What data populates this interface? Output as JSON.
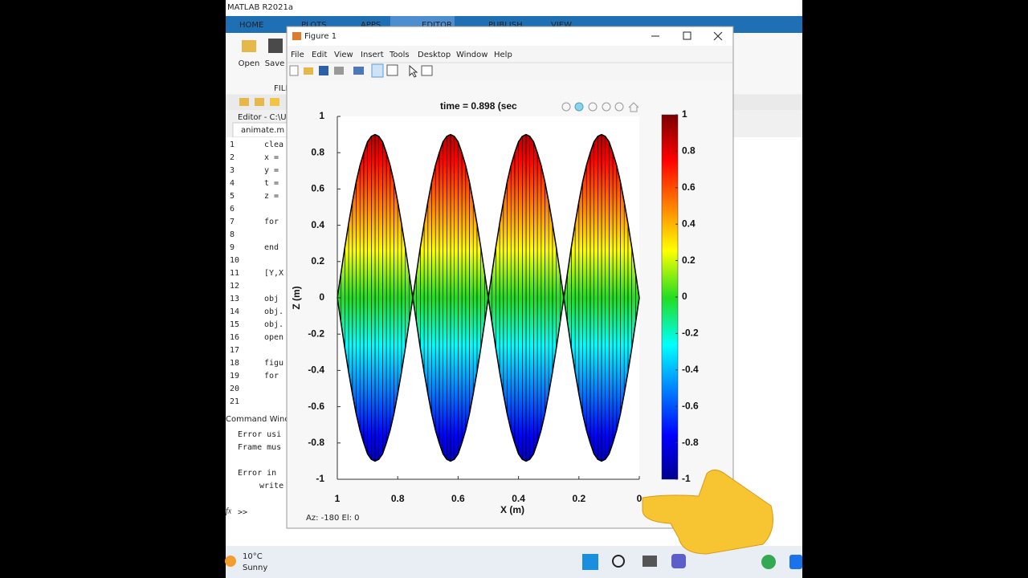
{
  "app_title": "MATLAB R2021a",
  "ribbon_tabs": [
    "HOME",
    "PLOTS",
    "APPS",
    "EDITOR",
    "PUBLISH",
    "VIEW"
  ],
  "toolbar": {
    "open": "Open",
    "save": "Save",
    "section": "FILE"
  },
  "editor": {
    "title": "Editor - C:\\Use",
    "tab": "animate.m",
    "lines": [
      {
        "line": "1",
        "text": "clea"
      },
      {
        "line": "2",
        "text": "x ="
      },
      {
        "line": "3",
        "text": "y ="
      },
      {
        "line": "4",
        "text": "t ="
      },
      {
        "line": "5",
        "text": "z ="
      },
      {
        "line": "6"
      },
      {
        "line": "7",
        "text": "for"
      },
      {
        "line": "8"
      },
      {
        "line": "9",
        "text": "end"
      },
      {
        "line": "10"
      },
      {
        "line": "11",
        "text": "[Y,X"
      },
      {
        "line": "12"
      },
      {
        "line": "13",
        "text": "obj"
      },
      {
        "line": "14",
        "text": "obj."
      },
      {
        "line": "15",
        "text": "obj."
      },
      {
        "line": "16",
        "text": "open"
      },
      {
        "line": "17"
      },
      {
        "line": "18",
        "text": "figu"
      },
      {
        "line": "19",
        "text": "for"
      },
      {
        "line": "20"
      },
      {
        "line": "21"
      }
    ]
  },
  "command_window": {
    "title": "Command Windo",
    "lines": [
      "Error usi",
      "Frame mus",
      "Error in",
      "write"
    ],
    "prompt_icon": "fx",
    "prompt": ">>"
  },
  "figure": {
    "title": "Figure 1",
    "menus": [
      "File",
      "Edit",
      "View",
      "Insert",
      "Tools",
      "Desktop",
      "Window",
      "Help"
    ],
    "view_status": "Az: -180 El:   0"
  },
  "chart_data": {
    "type": "surface",
    "title": "time = 0.898 (sec",
    "x_label": "X (m)",
    "y_label": "Z (m)",
    "xlim": [
      0,
      1
    ],
    "x_reverse": true,
    "xticks": [
      0,
      0.2,
      0.4,
      0.6,
      0.8,
      1
    ],
    "ylim": [
      -1,
      1
    ],
    "yticks": [
      -1,
      -0.8,
      -0.6,
      -0.4,
      -0.2,
      0,
      0.2,
      0.4,
      0.6,
      0.8,
      1
    ],
    "colormap": "jet",
    "edge_color": "#000000",
    "x": [
      0,
      0.0125,
      0.025,
      0.0375,
      0.05,
      0.0625,
      0.075,
      0.0875,
      0.1,
      0.1125,
      0.125,
      0.1375,
      0.15,
      0.1625,
      0.175,
      0.1875,
      0.2,
      0.2125,
      0.225,
      0.2375,
      0.25,
      0.2625,
      0.275,
      0.2875,
      0.3,
      0.3125,
      0.325,
      0.3375,
      0.35,
      0.3625,
      0.375,
      0.3875,
      0.4,
      0.4125,
      0.425,
      0.4375,
      0.45,
      0.4625,
      0.475,
      0.4875,
      0.5,
      0.5125,
      0.525,
      0.5375,
      0.55,
      0.5625,
      0.575,
      0.5875,
      0.6,
      0.6125,
      0.625,
      0.6375,
      0.65,
      0.6625,
      0.675,
      0.6875,
      0.7,
      0.7125,
      0.725,
      0.7375,
      0.75,
      0.7625,
      0.775,
      0.7875,
      0.8,
      0.8125,
      0.825,
      0.8375,
      0.85,
      0.8625,
      0.875,
      0.8875,
      0.9,
      0.9125,
      0.925,
      0.9375,
      0.95,
      0.9625,
      0.975,
      0.9875,
      1
    ],
    "z_upper": [
      0,
      0.14,
      0.28,
      0.41,
      0.53,
      0.64,
      0.73,
      0.8,
      0.86,
      0.89,
      0.9,
      0.89,
      0.86,
      0.8,
      0.73,
      0.64,
      0.53,
      0.41,
      0.28,
      0.14,
      0,
      0.14,
      0.28,
      0.41,
      0.53,
      0.64,
      0.73,
      0.8,
      0.86,
      0.89,
      0.9,
      0.89,
      0.86,
      0.8,
      0.73,
      0.64,
      0.53,
      0.41,
      0.28,
      0.14,
      0,
      0.14,
      0.28,
      0.41,
      0.53,
      0.64,
      0.73,
      0.8,
      0.86,
      0.89,
      0.9,
      0.89,
      0.86,
      0.8,
      0.73,
      0.64,
      0.53,
      0.41,
      0.28,
      0.14,
      0,
      0.14,
      0.28,
      0.41,
      0.53,
      0.64,
      0.73,
      0.8,
      0.86,
      0.89,
      0.9,
      0.89,
      0.86,
      0.8,
      0.73,
      0.64,
      0.53,
      0.41,
      0.28,
      0.14,
      0
    ],
    "z_lower": [
      0,
      -0.14,
      -0.28,
      -0.41,
      -0.53,
      -0.64,
      -0.73,
      -0.8,
      -0.86,
      -0.89,
      -0.9,
      -0.89,
      -0.86,
      -0.8,
      -0.73,
      -0.64,
      -0.53,
      -0.41,
      -0.28,
      -0.14,
      0,
      -0.14,
      -0.28,
      -0.41,
      -0.53,
      -0.64,
      -0.73,
      -0.8,
      -0.86,
      -0.89,
      -0.9,
      -0.89,
      -0.86,
      -0.8,
      -0.73,
      -0.64,
      -0.53,
      -0.41,
      -0.28,
      -0.14,
      0,
      -0.14,
      -0.28,
      -0.41,
      -0.53,
      -0.64,
      -0.73,
      -0.8,
      -0.86,
      -0.89,
      -0.9,
      -0.89,
      -0.86,
      -0.8,
      -0.73,
      -0.64,
      -0.53,
      -0.41,
      -0.28,
      -0.14,
      0,
      -0.14,
      -0.28,
      -0.41,
      -0.53,
      -0.64,
      -0.73,
      -0.8,
      -0.86,
      -0.89,
      -0.9,
      -0.89,
      -0.86,
      -0.8,
      -0.73,
      -0.64,
      -0.53,
      -0.41,
      -0.28,
      -0.14,
      0
    ],
    "colorbar": {
      "lim": [
        -1,
        1
      ],
      "ticks": [
        -1,
        -0.8,
        -0.6,
        -0.4,
        -0.2,
        0,
        0.2,
        0.4,
        0.6,
        0.8,
        1
      ]
    }
  },
  "taskbar": {
    "temperature": "10°C",
    "weather": "Sunny"
  }
}
